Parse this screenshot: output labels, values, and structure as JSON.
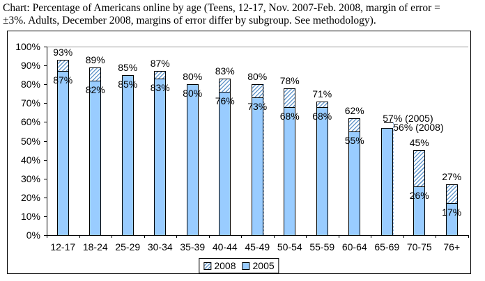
{
  "title": {
    "line1": "Chart: Percentage of Americans online by age (Teens, 12-17, Nov. 2007-Feb. 2008, margin of error =",
    "line2": "±3%. Adults, December 2008, margins of error differ by subgroup. See methodology)."
  },
  "legend": {
    "items": [
      {
        "label": "2008",
        "style": "hatched"
      },
      {
        "label": "2005",
        "style": "solid"
      }
    ]
  },
  "colors": {
    "bar_fill": "#99CCFF",
    "hatch_line": "#6699CC",
    "bar_border": "#000000",
    "gridline": "#999999",
    "leader_dotted": "#7FA8D9"
  },
  "chart_data": {
    "type": "bar",
    "title": "Percentage of Americans online by age",
    "categories": [
      "12-17",
      "18-24",
      "25-29",
      "30-34",
      "35-39",
      "40-44",
      "45-49",
      "50-54",
      "55-59",
      "60-64",
      "65-69",
      "70-75",
      "76+"
    ],
    "series": [
      {
        "name": "2008",
        "values": [
          93,
          89,
          85,
          87,
          80,
          83,
          80,
          78,
          71,
          62,
          56,
          45,
          27
        ]
      },
      {
        "name": "2005",
        "values": [
          87,
          82,
          85,
          83,
          80,
          76,
          73,
          68,
          68,
          55,
          57,
          26,
          17
        ]
      }
    ],
    "bar_labels_2008": [
      "93%",
      "89%",
      "85%",
      "87%",
      "80%",
      "83%",
      "80%",
      "78%",
      "71%",
      "62%",
      "56% (2008)",
      "45%",
      "27%"
    ],
    "bar_labels_2005": [
      "87%",
      "82%",
      "85%",
      "83%",
      "80%",
      "76%",
      "73%",
      "68%",
      "68%",
      "55%",
      "57% (2005)",
      "26%",
      "17%"
    ],
    "ytick_labels": [
      "0%",
      "10%",
      "20%",
      "30%",
      "40%",
      "50%",
      "60%",
      "70%",
      "80%",
      "90%",
      "100%"
    ],
    "ylim": [
      0,
      100
    ],
    "right_label_index": 10,
    "dotted_artifact_index": 6,
    "legend_position": "bottom-center",
    "grid": "top-line-only",
    "bar_style": "2005 solid blue, 2008 increment hatched overlay stacked on top"
  }
}
